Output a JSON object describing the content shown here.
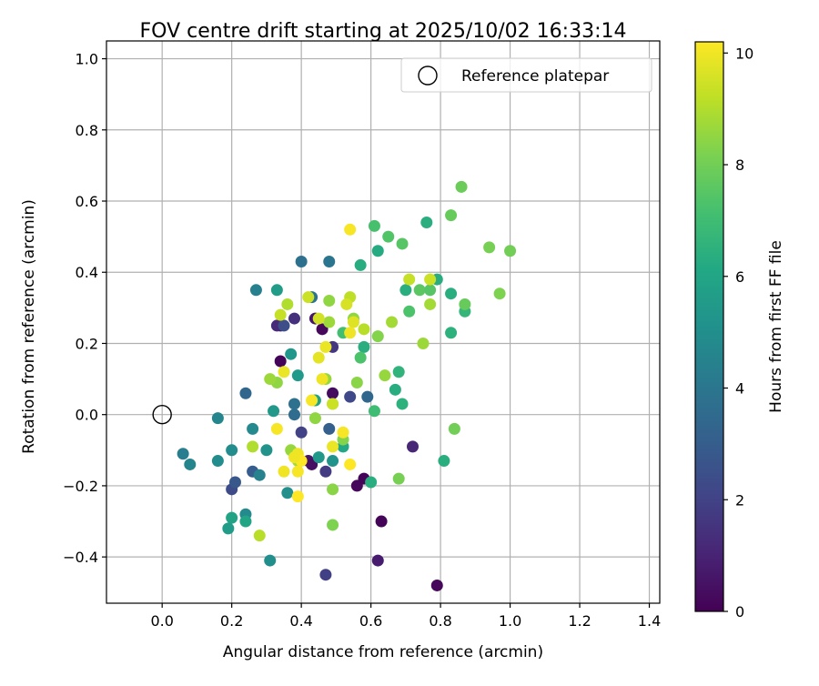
{
  "chart_data": {
    "type": "scatter",
    "title": "FOV centre drift starting at 2025/10/02 16:33:14",
    "xlabel": "Angular distance from reference (arcmin)",
    "ylabel": "Rotation from reference (arcmin)",
    "xlim": [
      -0.16,
      1.43
    ],
    "ylim": [
      -0.53,
      1.05
    ],
    "xticks": [
      "0.0",
      "0.2",
      "0.4",
      "0.6",
      "0.8",
      "1.0",
      "1.2",
      "1.4"
    ],
    "yticks": [
      "−0.4",
      "−0.2",
      "0.0",
      "0.2",
      "0.4",
      "0.6",
      "0.8",
      "1.0"
    ],
    "grid": true,
    "legend": {
      "placement": "upper right",
      "entries": [
        "Reference platepar"
      ]
    },
    "colorbar": {
      "label": "Hours from first FF file",
      "range": [
        0,
        10.2
      ],
      "ticks": [
        "0",
        "2",
        "4",
        "6",
        "8",
        "10"
      ],
      "colormap": "viridis"
    },
    "reference_point": {
      "x": 0.0,
      "y": 0.0,
      "label": "Reference platepar"
    },
    "points": [
      {
        "x": 0.34,
        "y": 0.25,
        "h": 0.5
      },
      {
        "x": 0.34,
        "y": 0.15,
        "h": 0.1
      },
      {
        "x": 0.44,
        "y": 0.27,
        "h": 0.6
      },
      {
        "x": 0.46,
        "y": 0.24,
        "h": 0.2
      },
      {
        "x": 0.42,
        "y": -0.13,
        "h": 0.6
      },
      {
        "x": 0.43,
        "y": -0.14,
        "h": 0.4
      },
      {
        "x": 0.49,
        "y": 0.06,
        "h": 0.3
      },
      {
        "x": 0.56,
        "y": -0.2,
        "h": 0.2
      },
      {
        "x": 0.58,
        "y": -0.18,
        "h": 0.1
      },
      {
        "x": 0.63,
        "y": -0.3,
        "h": 0.1
      },
      {
        "x": 0.62,
        "y": -0.41,
        "h": 0.8
      },
      {
        "x": 0.79,
        "y": -0.48,
        "h": 0.2
      },
      {
        "x": 0.72,
        "y": -0.09,
        "h": 1.1
      },
      {
        "x": 0.47,
        "y": -0.45,
        "h": 1.9
      },
      {
        "x": 0.33,
        "y": 0.25,
        "h": 1.2
      },
      {
        "x": 0.38,
        "y": 0.27,
        "h": 1.4
      },
      {
        "x": 0.49,
        "y": 0.19,
        "h": 1.6
      },
      {
        "x": 0.47,
        "y": -0.16,
        "h": 1.8
      },
      {
        "x": 0.4,
        "y": -0.05,
        "h": 2.0
      },
      {
        "x": 0.54,
        "y": 0.05,
        "h": 2.2
      },
      {
        "x": 0.35,
        "y": 0.25,
        "h": 2.4
      },
      {
        "x": 0.2,
        "y": -0.21,
        "h": 2.3
      },
      {
        "x": 0.21,
        "y": -0.19,
        "h": 2.8
      },
      {
        "x": 0.26,
        "y": -0.16,
        "h": 3.0
      },
      {
        "x": 0.48,
        "y": -0.04,
        "h": 3.1
      },
      {
        "x": 0.24,
        "y": 0.06,
        "h": 3.4
      },
      {
        "x": 0.59,
        "y": 0.05,
        "h": 3.4
      },
      {
        "x": 0.38,
        "y": 0.0,
        "h": 3.6
      },
      {
        "x": 0.4,
        "y": 0.43,
        "h": 3.8
      },
      {
        "x": 0.48,
        "y": 0.43,
        "h": 4.0
      },
      {
        "x": 0.43,
        "y": 0.33,
        "h": 3.9
      },
      {
        "x": 0.38,
        "y": 0.03,
        "h": 3.8
      },
      {
        "x": 0.27,
        "y": 0.35,
        "h": 4.4
      },
      {
        "x": 0.06,
        "y": -0.11,
        "h": 4.3
      },
      {
        "x": 0.08,
        "y": -0.14,
        "h": 4.6
      },
      {
        "x": 0.16,
        "y": -0.01,
        "h": 4.6
      },
      {
        "x": 0.16,
        "y": -0.13,
        "h": 4.9
      },
      {
        "x": 0.2,
        "y": -0.1,
        "h": 4.9
      },
      {
        "x": 0.24,
        "y": -0.28,
        "h": 4.8
      },
      {
        "x": 0.26,
        "y": -0.04,
        "h": 4.8
      },
      {
        "x": 0.28,
        "y": -0.17,
        "h": 4.5
      },
      {
        "x": 0.3,
        "y": -0.1,
        "h": 5.2
      },
      {
        "x": 0.31,
        "y": -0.41,
        "h": 5.0
      },
      {
        "x": 0.36,
        "y": -0.22,
        "h": 5.0
      },
      {
        "x": 0.32,
        "y": 0.01,
        "h": 5.4
      },
      {
        "x": 0.39,
        "y": 0.11,
        "h": 5.5
      },
      {
        "x": 0.37,
        "y": 0.17,
        "h": 5.3
      },
      {
        "x": 0.33,
        "y": 0.35,
        "h": 5.6
      },
      {
        "x": 0.45,
        "y": -0.12,
        "h": 5.4
      },
      {
        "x": 0.49,
        "y": -0.13,
        "h": 5.2
      },
      {
        "x": 0.19,
        "y": -0.32,
        "h": 5.6
      },
      {
        "x": 0.2,
        "y": -0.29,
        "h": 5.9
      },
      {
        "x": 0.24,
        "y": -0.3,
        "h": 6.0
      },
      {
        "x": 0.44,
        "y": 0.04,
        "h": 5.8
      },
      {
        "x": 0.52,
        "y": -0.09,
        "h": 6.1
      },
      {
        "x": 0.57,
        "y": 0.42,
        "h": 6.3
      },
      {
        "x": 0.62,
        "y": 0.46,
        "h": 6.2
      },
      {
        "x": 0.58,
        "y": 0.19,
        "h": 6.4
      },
      {
        "x": 0.6,
        "y": -0.19,
        "h": 6.4
      },
      {
        "x": 0.67,
        "y": 0.07,
        "h": 6.3
      },
      {
        "x": 0.68,
        "y": 0.12,
        "h": 6.6
      },
      {
        "x": 0.69,
        "y": 0.03,
        "h": 6.5
      },
      {
        "x": 0.7,
        "y": 0.35,
        "h": 6.4
      },
      {
        "x": 0.76,
        "y": 0.54,
        "h": 6.4
      },
      {
        "x": 0.79,
        "y": 0.38,
        "h": 6.3
      },
      {
        "x": 0.81,
        "y": -0.13,
        "h": 6.4
      },
      {
        "x": 0.83,
        "y": 0.23,
        "h": 6.5
      },
      {
        "x": 0.83,
        "y": 0.34,
        "h": 6.4
      },
      {
        "x": 0.87,
        "y": 0.29,
        "h": 6.7
      },
      {
        "x": 0.61,
        "y": 0.01,
        "h": 7.0
      },
      {
        "x": 0.52,
        "y": 0.23,
        "h": 7.1
      },
      {
        "x": 0.57,
        "y": 0.16,
        "h": 7.3
      },
      {
        "x": 0.61,
        "y": 0.53,
        "h": 7.2
      },
      {
        "x": 0.65,
        "y": 0.5,
        "h": 7.4
      },
      {
        "x": 0.69,
        "y": 0.48,
        "h": 7.5
      },
      {
        "x": 0.71,
        "y": 0.29,
        "h": 7.3
      },
      {
        "x": 0.74,
        "y": 0.35,
        "h": 7.6
      },
      {
        "x": 0.77,
        "y": 0.35,
        "h": 7.5
      },
      {
        "x": 0.83,
        "y": 0.56,
        "h": 7.8
      },
      {
        "x": 0.86,
        "y": 0.64,
        "h": 7.9
      },
      {
        "x": 0.87,
        "y": 0.31,
        "h": 7.8
      },
      {
        "x": 0.84,
        "y": -0.04,
        "h": 8.0
      },
      {
        "x": 0.94,
        "y": 0.47,
        "h": 8.1
      },
      {
        "x": 0.97,
        "y": 0.34,
        "h": 8.2
      },
      {
        "x": 1.0,
        "y": 0.46,
        "h": 8.0
      },
      {
        "x": 0.68,
        "y": -0.18,
        "h": 8.1
      },
      {
        "x": 0.49,
        "y": -0.31,
        "h": 8.2
      },
      {
        "x": 0.49,
        "y": -0.21,
        "h": 8.4
      },
      {
        "x": 0.52,
        "y": -0.07,
        "h": 8.3
      },
      {
        "x": 0.56,
        "y": 0.09,
        "h": 8.4
      },
      {
        "x": 0.55,
        "y": 0.27,
        "h": 8.5
      },
      {
        "x": 0.62,
        "y": 0.22,
        "h": 8.3
      },
      {
        "x": 0.64,
        "y": 0.11,
        "h": 8.6
      },
      {
        "x": 0.66,
        "y": 0.26,
        "h": 8.8
      },
      {
        "x": 0.75,
        "y": 0.2,
        "h": 8.7
      },
      {
        "x": 0.77,
        "y": 0.31,
        "h": 8.8
      },
      {
        "x": 0.48,
        "y": 0.32,
        "h": 8.5
      },
      {
        "x": 0.48,
        "y": 0.26,
        "h": 8.7
      },
      {
        "x": 0.47,
        "y": 0.1,
        "h": 8.6
      },
      {
        "x": 0.44,
        "y": -0.01,
        "h": 8.5
      },
      {
        "x": 0.49,
        "y": 0.03,
        "h": 8.7
      },
      {
        "x": 0.33,
        "y": 0.09,
        "h": 8.5
      },
      {
        "x": 0.31,
        "y": 0.1,
        "h": 8.7
      },
      {
        "x": 0.37,
        "y": -0.1,
        "h": 8.6
      },
      {
        "x": 0.39,
        "y": -0.13,
        "h": 8.8
      },
      {
        "x": 0.26,
        "y": -0.09,
        "h": 9.0
      },
      {
        "x": 0.28,
        "y": -0.34,
        "h": 9.1
      },
      {
        "x": 0.36,
        "y": 0.31,
        "h": 9.0
      },
      {
        "x": 0.34,
        "y": 0.28,
        "h": 9.3
      },
      {
        "x": 0.42,
        "y": 0.33,
        "h": 9.4
      },
      {
        "x": 0.45,
        "y": 0.27,
        "h": 9.5
      },
      {
        "x": 0.49,
        "y": 0.03,
        "h": 9.4
      },
      {
        "x": 0.54,
        "y": 0.33,
        "h": 9.2
      },
      {
        "x": 0.53,
        "y": 0.31,
        "h": 9.6
      },
      {
        "x": 0.58,
        "y": 0.24,
        "h": 9.1
      },
      {
        "x": 0.71,
        "y": 0.38,
        "h": 9.3
      },
      {
        "x": 0.77,
        "y": 0.38,
        "h": 9.4
      },
      {
        "x": 0.45,
        "y": 0.16,
        "h": 9.8
      },
      {
        "x": 0.47,
        "y": 0.19,
        "h": 9.9
      },
      {
        "x": 0.55,
        "y": 0.26,
        "h": 9.7
      },
      {
        "x": 0.54,
        "y": 0.23,
        "h": 10.0
      },
      {
        "x": 0.54,
        "y": 0.52,
        "h": 10.1
      },
      {
        "x": 0.49,
        "y": -0.09,
        "h": 9.9
      },
      {
        "x": 0.46,
        "y": 0.1,
        "h": 10.0
      },
      {
        "x": 0.52,
        "y": -0.05,
        "h": 10.1
      },
      {
        "x": 0.54,
        "y": -0.14,
        "h": 10.2
      },
      {
        "x": 0.33,
        "y": -0.04,
        "h": 10.1
      },
      {
        "x": 0.35,
        "y": 0.12,
        "h": 9.9
      },
      {
        "x": 0.35,
        "y": -0.16,
        "h": 10.0
      },
      {
        "x": 0.39,
        "y": -0.16,
        "h": 10.1
      },
      {
        "x": 0.39,
        "y": -0.23,
        "h": 10.2
      },
      {
        "x": 0.39,
        "y": -0.11,
        "h": 10.0
      },
      {
        "x": 0.4,
        "y": -0.13,
        "h": 10.2
      },
      {
        "x": 0.43,
        "y": 0.04,
        "h": 10.1
      },
      {
        "x": 0.38,
        "y": -0.12,
        "h": 10.0
      }
    ]
  }
}
